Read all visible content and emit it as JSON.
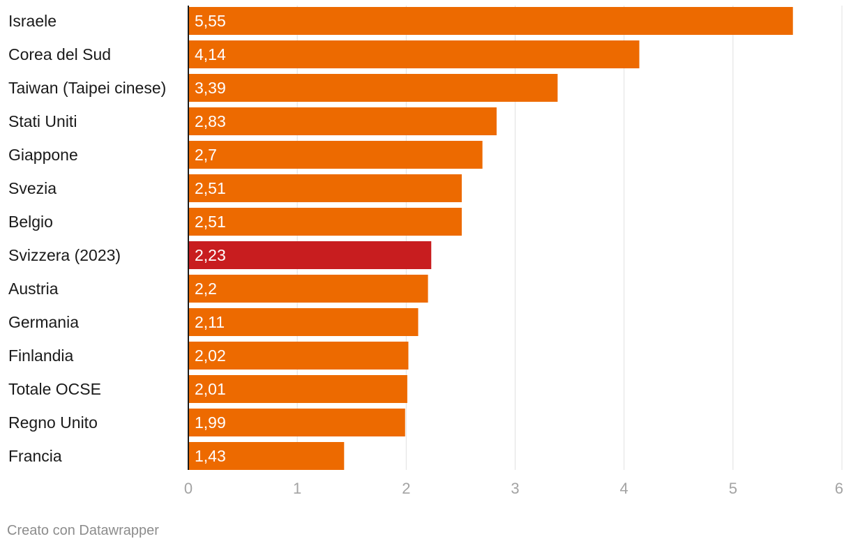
{
  "chart_data": {
    "type": "bar",
    "orientation": "horizontal",
    "title": "",
    "xlabel": "",
    "ylabel": "",
    "xlim": [
      0,
      6
    ],
    "xticks": [
      "0",
      "1",
      "2",
      "3",
      "4",
      "5",
      "6"
    ],
    "grid": true,
    "categories": [
      "Israele",
      "Corea del Sud",
      "Taiwan (Taipei cinese)",
      "Stati Uniti",
      "Giappone",
      "Svezia",
      "Belgio",
      "Svizzera (2023)",
      "Austria",
      "Germania",
      "Finlandia",
      "Totale OCSE",
      "Regno Unito",
      "Francia"
    ],
    "values": [
      5.55,
      4.14,
      3.39,
      2.83,
      2.7,
      2.51,
      2.51,
      2.23,
      2.2,
      2.11,
      2.02,
      2.01,
      1.99,
      1.43
    ],
    "value_labels": [
      "5,55",
      "4,14",
      "3,39",
      "2,83",
      "2,7",
      "2,51",
      "2,51",
      "2,23",
      "2,2",
      "2,11",
      "2,02",
      "2,01",
      "1,99",
      "1,43"
    ],
    "highlight_index": 7,
    "colors": {
      "bar": "#ed6a00",
      "highlight": "#c81d1f",
      "grid": "#e0e0e0",
      "axis": "#1a1a1a"
    }
  },
  "footer": {
    "credit": "Creato con Datawrapper"
  }
}
